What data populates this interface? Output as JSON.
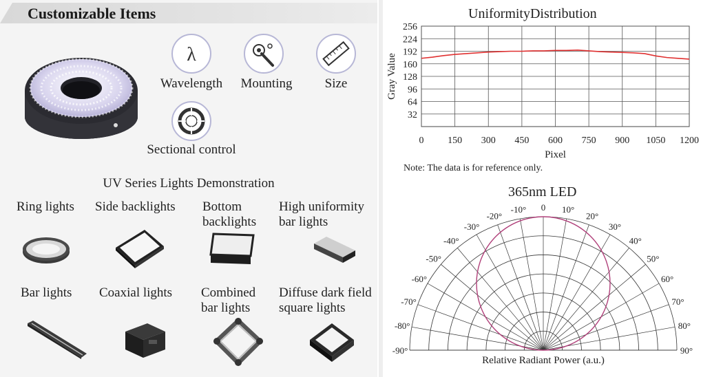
{
  "left": {
    "header_title": "Customizable Items",
    "items": [
      {
        "label": "Wavelength",
        "icon": "lambda-icon"
      },
      {
        "label": "Mounting",
        "icon": "screwdriver-icon"
      },
      {
        "label": "Size",
        "icon": "ruler-icon"
      },
      {
        "label": "Sectional control",
        "icon": "sectional-ring-icon"
      }
    ],
    "demo_title": "UV Series Lights Demonstration",
    "products": [
      {
        "label": "Ring lights"
      },
      {
        "label": "Side backlights"
      },
      {
        "label": "Bottom backlights"
      },
      {
        "label": "High uniformity bar lights"
      },
      {
        "label": "Bar lights"
      },
      {
        "label": "Coaxial lights"
      },
      {
        "label": "Combined bar lights"
      },
      {
        "label": "Diffuse dark field square lights"
      }
    ]
  },
  "chart_data": [
    {
      "type": "line",
      "title": "UniformityDistribution",
      "xlabel": "Pixel",
      "ylabel": "Gray Value",
      "xlim": [
        0,
        1200
      ],
      "ylim": [
        0,
        256
      ],
      "xticks": [
        0,
        150,
        300,
        450,
        600,
        750,
        900,
        1050,
        1200
      ],
      "yticks": [
        32,
        64,
        96,
        128,
        160,
        192,
        224,
        256
      ],
      "grid": true,
      "series": [
        {
          "color": "#e03030",
          "x": [
            0,
            50,
            100,
            150,
            200,
            250,
            300,
            350,
            400,
            450,
            500,
            550,
            600,
            650,
            700,
            750,
            800,
            850,
            900,
            950,
            1000,
            1050,
            1100,
            1150,
            1200
          ],
          "y": [
            174,
            177,
            181,
            184,
            186,
            188,
            190,
            191,
            192,
            192,
            193,
            193,
            194,
            194,
            195,
            193,
            191,
            190,
            189,
            188,
            186,
            180,
            176,
            174,
            172
          ]
        }
      ],
      "note": "Note: The data is for reference only."
    },
    {
      "type": "polar",
      "title": "365nm LED",
      "xlabel": "Relative Radiant Power (a.u.)",
      "angle_ticks": [
        "-90°",
        "-80°",
        "-70°",
        "-60°",
        "-50°",
        "-40°",
        "-30°",
        "-20°",
        "-10°",
        "0",
        "10°",
        "20°",
        "30°",
        "40°",
        "50°",
        "60°",
        "70°",
        "80°",
        "90°"
      ],
      "series": [
        {
          "color": "#b0407a",
          "shape": "circle-through-origin",
          "max_intensity": 1.0
        }
      ]
    }
  ]
}
